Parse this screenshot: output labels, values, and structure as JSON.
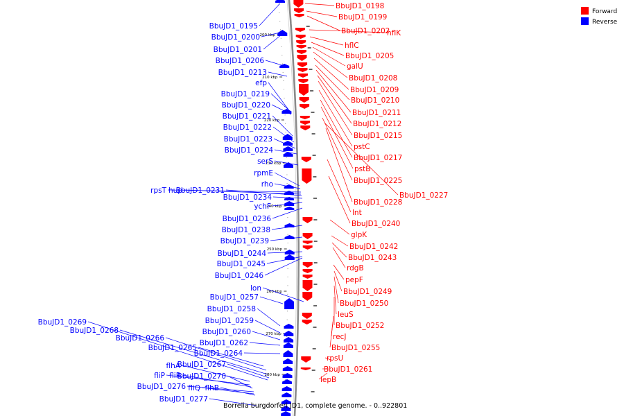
{
  "colors": {
    "forward": "#ff0000",
    "reverse": "#0000ff",
    "backbone": "#8a8a8a"
  },
  "legend": {
    "forward_label": "Forward",
    "reverse_label": "Reverse"
  },
  "caption": "Borrelia burgdorferi JD1, complete genome. - 0..922801",
  "ticks": [
    "200 kbp",
    "210 kbp",
    "220 kbp",
    "230 kbp",
    "240 kbp",
    "250 kbp",
    "260 kbp",
    "270 kbp",
    "280 kbp"
  ],
  "forward_labels": [
    "BbuJD1_0198",
    "BbuJD1_0199",
    "BbuJD1_0202",
    "hflK",
    "hflC",
    "BbuJD1_0205",
    "galU",
    "BbuJD1_0208",
    "BbuJD1_0209",
    "BbuJD1_0210",
    "BbuJD1_0211",
    "BbuJD1_0212",
    "BbuJD1_0215",
    "pstC",
    "BbuJD1_0217",
    "pstB",
    "BbuJD1_0225",
    "BbuJD1_0227",
    "BbuJD1_0228",
    "lnt",
    "BbuJD1_0240",
    "glpK",
    "BbuJD1_0242",
    "BbuJD1_0243",
    "rdgB",
    "pepF",
    "BbuJD1_0249",
    "BbuJD1_0250",
    "leuS",
    "BbuJD1_0252",
    "recJ",
    "BbuJD1_0255",
    "rpsU",
    "BbuJD1_0261",
    "lepB"
  ],
  "reverse_labels": [
    "BbuJD1_0195",
    "BbuJD1_0200",
    "BbuJD1_0201",
    "BbuJD1_0206",
    "BbuJD1_0213",
    "efp",
    "BbuJD1_0219",
    "BbuJD1_0220",
    "BbuJD1_0221",
    "BbuJD1_0222",
    "BbuJD1_0223",
    "BbuJD1_0224",
    "serS",
    "rpmE",
    "rho",
    "rpsT",
    "hup",
    "BbuJD1_0231",
    "BbuJD1_0234",
    "ychF",
    "BbuJD1_0236",
    "BbuJD1_0238",
    "BbuJD1_0239",
    "BbuJD1_0244",
    "BbuJD1_0245",
    "BbuJD1_0246",
    "lon",
    "BbuJD1_0257",
    "BbuJD1_0258",
    "BbuJD1_0259",
    "BbuJD1_0260",
    "BbuJD1_0262",
    "BbuJD1_0264",
    "BbuJD1_0265",
    "BbuJD1_0266",
    "BbuJD1_0268",
    "BbuJD1_0269",
    "BbuJD1_0267",
    "flhA",
    "fliP",
    "fliR",
    "BbuJD1_0270",
    "BbuJD1_0276",
    "fliQ",
    "flhB",
    "BbuJD1_0277"
  ]
}
